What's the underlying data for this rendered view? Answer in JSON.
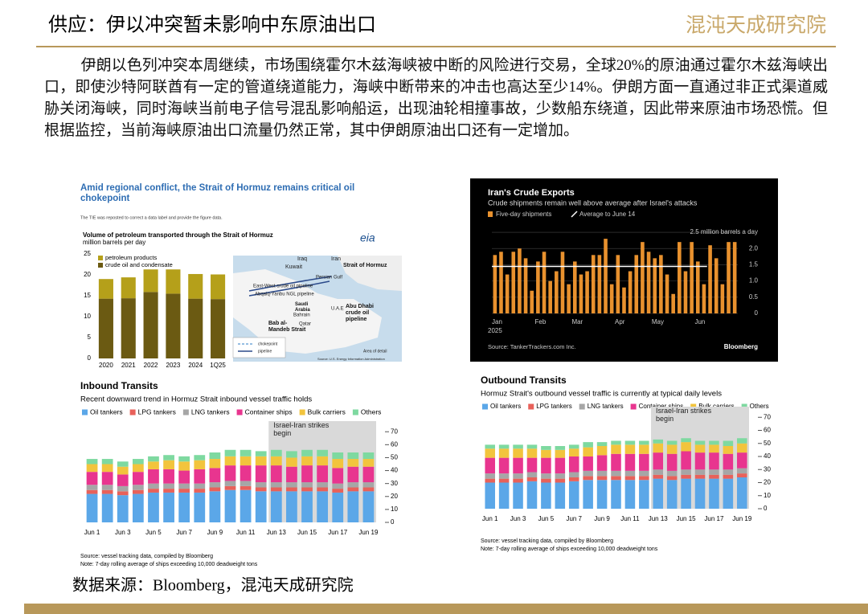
{
  "header": {
    "title": "供应：伊以冲突暂未影响中东原油出口",
    "logo": "混沌天成研究院"
  },
  "body": "伊朗以色列冲突本周继续，市场围绕霍尔木兹海峡被中断的风险进行交易，全球20%的原油通过霍尔木兹海峡出口，即使沙特阿联酋有一定的管道绕道能力，海峡中断带来的冲击也高达至少14%。伊朗方面一直通过非正式渠道威胁关闭海峡，同时海峡当前电子信号混乱影响船运，出现油轮相撞事故，少数船东绕道，因此带来原油市场恐慌。但根据监控，当前海峡原油出口流量仍然正常，其中伊朗原油出口还有一定增加。",
  "source": "数据来源：Bloomberg，混沌天成研究院",
  "map": {
    "labels": [
      "Iraq",
      "Iran",
      "Kuwait",
      "Persian Gulf",
      "Strait of Hormuz",
      "East-West crude oil pipeline",
      "Abqaiq-Yanbu NGL pipeline",
      "Bahrain",
      "Qatar",
      "Saudi Arabia",
      "U.A.E",
      "Abu Dhabi crude oil pipeline",
      "Bab al-Mandeb Strait",
      "chokepoint",
      "pipeline",
      "Area of detail",
      "Source: U.S. Energy Information Administration"
    ]
  },
  "chart_data": [
    {
      "type": "bar",
      "stacked": true,
      "title": "Amid regional conflict, the Strait of Hormuz remains critical oil chokepoint",
      "note": "The TIE was reposted to correct a data label and provide the figure data.",
      "subtitle": "Volume of petroleum transported through the Strait of Hormuz",
      "y_label": "million barrels per day",
      "logo": "eia",
      "categories": [
        "2020",
        "2021",
        "2022",
        "2023",
        "2024",
        "1Q25"
      ],
      "series": [
        {
          "name": "crude oil and condensate",
          "color": "#6b5a12",
          "values": [
            14.3,
            14.4,
            15.9,
            15.5,
            14.3,
            14.2
          ]
        },
        {
          "name": "petroleum products",
          "color": "#b5a01a",
          "values": [
            4.7,
            5.0,
            5.4,
            5.8,
            5.9,
            5.9
          ]
        }
      ],
      "ylim": [
        0,
        25
      ],
      "yticks": [
        0,
        5,
        10,
        15,
        20,
        25
      ]
    },
    {
      "type": "bar",
      "title": "Iran's Crude Exports",
      "subtitle": "Crude shipments remain well above average after Israel's attacks",
      "categories": [
        "Jan",
        null,
        null,
        null,
        null,
        null,
        null,
        "Feb",
        null,
        null,
        null,
        null,
        null,
        "Mar",
        null,
        null,
        null,
        null,
        null,
        null,
        "Apr",
        null,
        null,
        null,
        null,
        null,
        "May",
        null,
        null,
        null,
        null,
        null,
        null,
        "Jun",
        null,
        null,
        null,
        null,
        null,
        null
      ],
      "x_year": "2025",
      "series": [
        {
          "name": "Five-day shipments",
          "color": "#e8912e",
          "values": [
            1.8,
            1.9,
            1.2,
            1.9,
            2.0,
            1.7,
            0.7,
            1.6,
            1.9,
            1.0,
            1.3,
            1.9,
            0.9,
            1.6,
            1.2,
            1.3,
            1.8,
            1.8,
            2.3,
            0.9,
            1.8,
            0.8,
            1.3,
            1.8,
            2.2,
            1.9,
            1.7,
            1.8,
            1.2,
            0.6,
            2.2,
            1.3,
            2.2,
            1.6,
            0.9,
            2.1,
            1.7,
            0.9,
            2.2,
            2.2
          ]
        }
      ],
      "average": {
        "name": "Average to June 14",
        "value": 1.45
      },
      "ylim": [
        0,
        2.6
      ],
      "yticks": [
        0,
        0.5,
        {
          "value": 1,
          "label": "1.0"
        },
        1.5,
        {
          "value": 2,
          "label": "2.0"
        },
        {
          "value": 2.5,
          "label": "2.5 million barrels a day"
        }
      ],
      "source": "Source: TankerTrackers.com Inc.",
      "brand": "Bloomberg"
    },
    {
      "type": "bar",
      "stacked": true,
      "title": "Inbound Transits",
      "subtitle": "Recent downward trend in Hormuz Strait inbound vessel traffic holds",
      "categories": [
        "Jun 1",
        null,
        "Jun 3",
        null,
        "Jun 5",
        null,
        "Jun 7",
        null,
        "Jun 9",
        null,
        "Jun 11",
        null,
        "Jun 13",
        null,
        "Jun 15",
        null,
        "Jun 17",
        null,
        "Jun 19"
      ],
      "series": [
        {
          "name": "Oil tankers",
          "color": "#5ba7e8",
          "values": [
            22,
            22,
            21,
            22,
            23,
            23,
            23,
            23,
            24,
            25,
            25,
            24,
            24,
            24,
            24,
            24,
            23,
            24,
            24
          ]
        },
        {
          "name": "LPG tankers",
          "color": "#e8615a",
          "values": [
            3,
            3,
            3,
            3,
            3,
            3,
            3,
            3,
            3,
            3,
            3,
            3,
            3,
            3,
            3,
            3,
            3,
            3,
            3
          ]
        },
        {
          "name": "LNG tankers",
          "color": "#a6a6a6",
          "values": [
            4,
            4,
            4,
            4,
            4,
            4,
            4,
            4,
            4,
            4,
            4,
            4,
            4,
            4,
            4,
            4,
            4,
            4,
            4
          ]
        },
        {
          "name": "Container ships",
          "color": "#e8358f",
          "values": [
            10,
            10,
            9,
            10,
            11,
            11,
            10,
            11,
            11,
            12,
            12,
            13,
            13,
            12,
            13,
            13,
            12,
            12,
            12
          ]
        },
        {
          "name": "Bulk carriers",
          "color": "#f2c43d",
          "values": [
            6,
            6,
            6,
            6,
            6,
            7,
            7,
            7,
            7,
            7,
            7,
            7,
            7,
            7,
            7,
            7,
            7,
            6,
            6
          ]
        },
        {
          "name": "Others",
          "color": "#7ed9a0",
          "values": [
            4,
            4,
            4,
            4,
            4,
            4,
            4,
            4,
            5,
            5,
            5,
            4,
            5,
            5,
            5,
            5,
            5,
            5,
            5
          ]
        }
      ],
      "highlight_from": "Jun 13",
      "annotation": "Israel-Iran strikes begin",
      "ylim": [
        0,
        72
      ],
      "yticks": [
        0,
        10,
        20,
        30,
        40,
        50,
        60,
        70
      ],
      "source": "Source: vessel tracking data, compiled by Bloomberg",
      "note": "Note: 7-day rolling average of ships exceeding 10,000 deadweight tons"
    },
    {
      "type": "bar",
      "stacked": true,
      "title": "Outbound Transits",
      "subtitle": "Hormuz Strait's outbound vessel traffic is currently at typical daily levels",
      "categories": [
        "Jun 1",
        null,
        "Jun 3",
        null,
        "Jun 5",
        null,
        "Jun 7",
        null,
        "Jun 9",
        null,
        "Jun 11",
        null,
        "Jun 13",
        null,
        "Jun 15",
        null,
        "Jun 17",
        null,
        "Jun 19"
      ],
      "series": [
        {
          "name": "Oil tankers",
          "color": "#5ba7e8",
          "values": [
            20,
            20,
            20,
            21,
            20,
            20,
            21,
            22,
            22,
            22,
            22,
            22,
            23,
            22,
            23,
            23,
            23,
            23,
            24
          ]
        },
        {
          "name": "LPG tankers",
          "color": "#e8615a",
          "values": [
            3,
            3,
            3,
            3,
            3,
            3,
            3,
            3,
            3,
            3,
            3,
            3,
            3,
            3,
            3,
            3,
            3,
            3,
            3
          ]
        },
        {
          "name": "LNG tankers",
          "color": "#a6a6a6",
          "values": [
            4,
            4,
            4,
            4,
            4,
            4,
            4,
            4,
            4,
            4,
            4,
            4,
            4,
            4,
            4,
            4,
            4,
            4,
            4
          ]
        },
        {
          "name": "Container ships",
          "color": "#e8358f",
          "values": [
            12,
            12,
            12,
            11,
            12,
            12,
            12,
            11,
            12,
            13,
            13,
            13,
            13,
            13,
            14,
            13,
            13,
            12,
            12
          ]
        },
        {
          "name": "Bulk carriers",
          "color": "#f2c43d",
          "values": [
            7,
            7,
            7,
            7,
            6,
            6,
            6,
            7,
            7,
            7,
            7,
            7,
            7,
            7,
            7,
            6,
            6,
            6,
            7
          ]
        },
        {
          "name": "Others",
          "color": "#7ed9a0",
          "values": [
            3,
            3,
            3,
            3,
            3,
            3,
            3,
            4,
            3,
            3,
            3,
            3,
            3,
            3,
            3,
            3,
            3,
            4,
            4
          ]
        }
      ],
      "highlight_from": "Jun 13",
      "annotation": "Israel-Iran strikes begin",
      "ylim": [
        0,
        72
      ],
      "yticks": [
        0,
        10,
        20,
        30,
        40,
        50,
        60,
        70
      ],
      "source": "Source: vessel tracking data, compiled by Bloomberg",
      "note": "Note: 7-day rolling average of ships exceeding 10,000 deadweight tons"
    }
  ]
}
